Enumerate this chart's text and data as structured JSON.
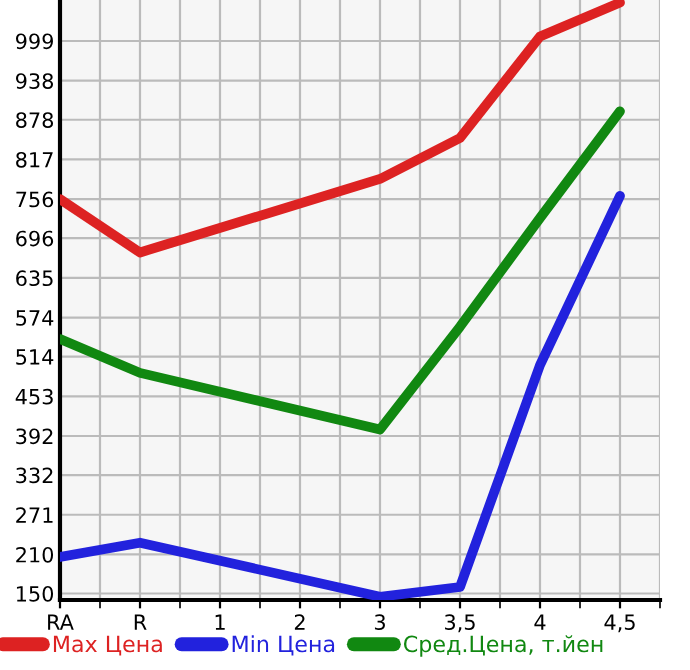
{
  "chart_data": {
    "type": "line",
    "categories": [
      "RA",
      "R",
      "1",
      "2",
      "3",
      "3,5",
      "4",
      "4,5"
    ],
    "series": [
      {
        "name": "Max Цена",
        "color": "#dd2222",
        "values": [
          756,
          674,
          null,
          null,
          787,
          850,
          1006,
          1058
        ]
      },
      {
        "name": "Min Цена",
        "color": "#2222dd",
        "values": [
          206,
          228,
          null,
          null,
          145,
          160,
          501,
          761
        ]
      },
      {
        "name": "Сред.Цена, т.йен",
        "color": "#118811",
        "values": [
          541,
          489,
          null,
          null,
          402,
          560,
          727,
          891
        ]
      }
    ],
    "ylim": [
      140,
      1062
    ],
    "yticks": [
      150,
      210,
      271,
      332,
      392,
      453,
      514,
      574,
      635,
      696,
      756,
      817,
      878,
      938,
      999
    ],
    "grid": true,
    "legend": "bottom",
    "marker": "none",
    "line_style": "solid"
  }
}
